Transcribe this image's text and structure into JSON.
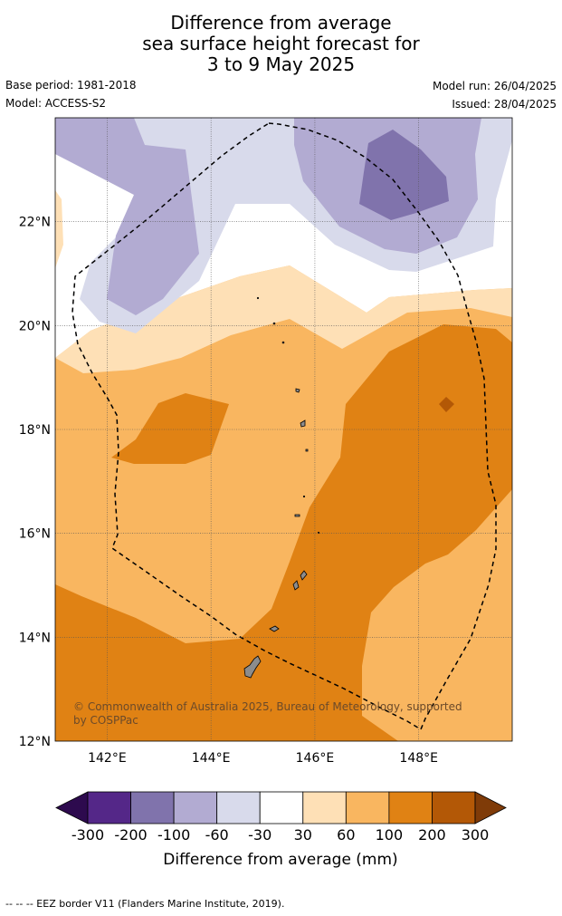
{
  "title": {
    "line1": "Difference from average",
    "line2": "sea surface height forecast for",
    "line3": "3 to 9 May 2025"
  },
  "meta": {
    "base_period": "Base period: 1981-2018",
    "model": "Model: ACCESS-S2",
    "model_run": "Model run: 26/04/2025",
    "issued": "Issued: 28/04/2025"
  },
  "map": {
    "region": "Guam / Northern Mariana Islands",
    "lon_range": [
      141,
      149.8
    ],
    "lat_range": [
      12,
      24
    ],
    "lon_ticks": [
      "142°E",
      "144°E",
      "146°E",
      "148°E"
    ],
    "lat_ticks": [
      "12°N",
      "14°N",
      "16°N",
      "18°N",
      "20°N",
      "22°N"
    ],
    "copyright_line1": "© Commonwealth of Australia 2025, Bureau of Meteorology, supported",
    "copyright_line2": "by COSPPac"
  },
  "colorbar": {
    "title": "Difference from average (mm)",
    "tick_labels": [
      "-300",
      "-200",
      "-100",
      "-60",
      "-30",
      "30",
      "60",
      "100",
      "200",
      "300"
    ],
    "colors": [
      "#2d0a4e",
      "#542788",
      "#8073ac",
      "#b2abd2",
      "#d8daeb",
      "#ffffff",
      "#fee0b6",
      "#f9b660",
      "#e08214",
      "#b35806",
      "#7f3b08"
    ]
  },
  "footer": {
    "legend_text": "--  --  -- EEZ border V11 (Flanders Marine Institute, 2019)."
  }
}
